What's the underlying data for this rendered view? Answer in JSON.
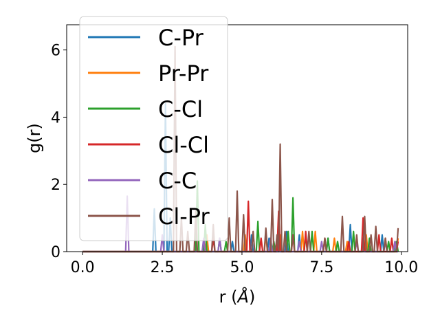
{
  "chart_data": {
    "type": "line",
    "title": "",
    "xlabel": "r (",
    "xlabel_unit": "Å",
    "xlabel_close": ")",
    "ylabel": "g(r)",
    "xlim": [
      -0.5,
      10.2
    ],
    "ylim": [
      0,
      6.75
    ],
    "xticks": [
      0.0,
      2.5,
      5.0,
      7.5,
      10.0
    ],
    "xtick_labels": [
      "0.0",
      "2.5",
      "5.0",
      "7.5",
      "10.0"
    ],
    "yticks": [
      0,
      2,
      4,
      6
    ],
    "ytick_labels": [
      "0",
      "2",
      "4",
      "6"
    ],
    "grid": false,
    "legend_position": "upper-left",
    "series": [
      {
        "name": "C-Pr",
        "color": "#1f77b4",
        "peaks": [
          [
            2.25,
            1.27
          ],
          [
            2.6,
            4.4
          ],
          [
            2.75,
            1.0
          ],
          [
            4.7,
            0.3
          ],
          [
            5.3,
            0.5
          ],
          [
            5.85,
            0.4
          ],
          [
            6.4,
            0.6
          ],
          [
            6.8,
            0.5
          ],
          [
            7.7,
            0.4
          ],
          [
            8.4,
            0.8
          ],
          [
            8.8,
            0.4
          ],
          [
            9.4,
            0.5
          ],
          [
            9.8,
            0.3
          ]
        ]
      },
      {
        "name": "Pr-Pr",
        "color": "#ff7f0e",
        "peaks": [
          [
            3.9,
            0.5
          ],
          [
            5.1,
            0.5
          ],
          [
            5.75,
            0.5
          ],
          [
            6.2,
            0.5
          ],
          [
            6.9,
            0.6
          ],
          [
            7.3,
            0.6
          ],
          [
            7.9,
            0.4
          ],
          [
            8.3,
            0.3
          ],
          [
            8.9,
            0.5
          ],
          [
            9.5,
            0.4
          ],
          [
            9.9,
            0.4
          ]
        ]
      },
      {
        "name": "C-Cl",
        "color": "#2ca02c",
        "peaks": [
          [
            3.6,
            2.1
          ],
          [
            3.85,
            0.8
          ],
          [
            4.3,
            0.4
          ],
          [
            4.5,
            0.3
          ],
          [
            5.5,
            0.9
          ],
          [
            6.0,
            0.3
          ],
          [
            6.45,
            0.6
          ],
          [
            6.6,
            1.6
          ],
          [
            7.0,
            0.5
          ],
          [
            7.2,
            0.6
          ],
          [
            7.7,
            0.4
          ],
          [
            8.0,
            0.3
          ],
          [
            8.5,
            0.6
          ],
          [
            9.0,
            0.4
          ],
          [
            9.6,
            0.3
          ],
          [
            9.85,
            0.3
          ]
        ]
      },
      {
        "name": "Cl-Cl",
        "color": "#d62728",
        "peaks": [
          [
            4.1,
            0.4
          ],
          [
            5.2,
            1.5
          ],
          [
            5.6,
            0.4
          ],
          [
            6.15,
            1.2
          ],
          [
            6.6,
            0.5
          ],
          [
            7.0,
            0.6
          ],
          [
            7.6,
            0.4
          ],
          [
            8.35,
            0.3
          ],
          [
            8.8,
            1.0
          ],
          [
            9.3,
            0.5
          ],
          [
            9.7,
            0.4
          ],
          [
            9.9,
            0.3
          ]
        ]
      },
      {
        "name": "C-C",
        "color": "#9467bd",
        "peaks": [
          [
            1.4,
            1.65
          ],
          [
            2.5,
            0.5
          ],
          [
            3.8,
            0.4
          ],
          [
            4.3,
            0.4
          ],
          [
            5.9,
            0.4
          ],
          [
            6.8,
            0.3
          ],
          [
            7.5,
            0.3
          ],
          [
            8.6,
            0.3
          ],
          [
            9.5,
            0.3
          ],
          [
            9.8,
            0.3
          ]
        ]
      },
      {
        "name": "Cl-Pr",
        "color": "#8c564b",
        "peaks": [
          [
            2.9,
            6.1
          ],
          [
            3.1,
            1.0
          ],
          [
            3.3,
            0.6
          ],
          [
            3.55,
            1.2
          ],
          [
            4.1,
            0.8
          ],
          [
            4.6,
            1.0
          ],
          [
            4.85,
            1.8
          ],
          [
            5.05,
            1.1
          ],
          [
            5.35,
            0.6
          ],
          [
            5.75,
            0.7
          ],
          [
            5.95,
            1.55
          ],
          [
            6.1,
            0.5
          ],
          [
            6.2,
            3.2
          ],
          [
            6.35,
            0.6
          ],
          [
            6.6,
            0.5
          ],
          [
            7.1,
            0.6
          ],
          [
            7.6,
            0.4
          ],
          [
            8.15,
            1.05
          ],
          [
            8.6,
            0.5
          ],
          [
            8.85,
            1.05
          ],
          [
            9.05,
            0.5
          ],
          [
            9.2,
            0.75
          ],
          [
            9.5,
            0.4
          ],
          [
            9.9,
            0.7
          ]
        ]
      }
    ]
  }
}
